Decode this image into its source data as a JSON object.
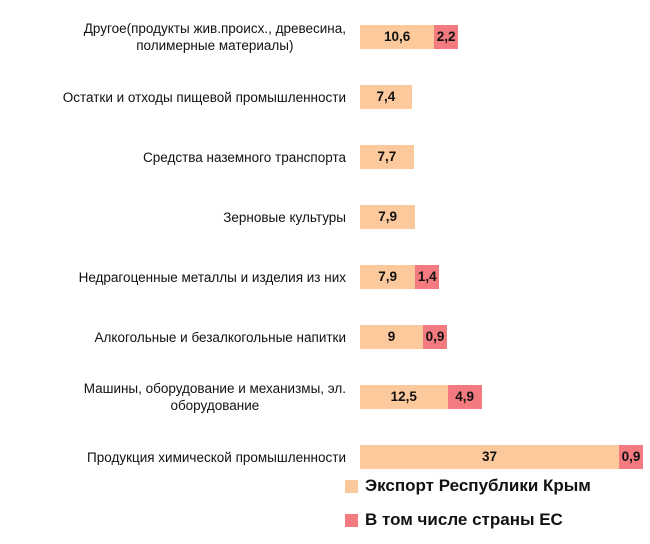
{
  "chart_data": {
    "type": "bar",
    "orientation": "horizontal",
    "stacked": true,
    "categories": [
      "Другое(продукты жив.происх., древесина, полимерные материалы)",
      "Остатки и отходы пищевой промышленности",
      "Средства наземного транспорта",
      "Зерновые культуры",
      "Недрагоценные металлы и изделия из них",
      "Алкогольные и безалкогольные напитки",
      "Машины, оборудование и механизмы, эл. оборудование",
      "Продукция химической промышленности"
    ],
    "category_lines": [
      [
        "Другое(продукты жив.происх., древесина,",
        "полимерные материалы)"
      ],
      [
        "Остатки и отходы пищевой промышленности"
      ],
      [
        "Средства наземного транспорта"
      ],
      [
        "Зерновые культуры"
      ],
      [
        "Недрагоценные металлы и изделия из них"
      ],
      [
        "Алкогольные и безалкогольные напитки"
      ],
      [
        "Машины, оборудование и механизмы, эл.",
        "оборудование"
      ],
      [
        "Продукция химической промышленности"
      ]
    ],
    "series": [
      {
        "name": "Экспорт Республики Крым",
        "color": "#fbc99b",
        "values": [
          10.6,
          7.4,
          7.7,
          7.9,
          7.9,
          9,
          12.5,
          37
        ],
        "labels": [
          "10,6",
          "7,4",
          "7,7",
          "7,9",
          "7,9",
          "9",
          "12,5",
          "37"
        ]
      },
      {
        "name": "В том числе страны ЕС",
        "color": "#f37a7f",
        "values": [
          2.2,
          null,
          null,
          null,
          1.4,
          0.9,
          4.9,
          0.9
        ],
        "labels": [
          "2,2",
          "",
          "",
          "",
          "1,4",
          "0,9",
          "4,9",
          "0,9"
        ]
      }
    ],
    "legend_position": "bottom-right",
    "grid": false
  }
}
